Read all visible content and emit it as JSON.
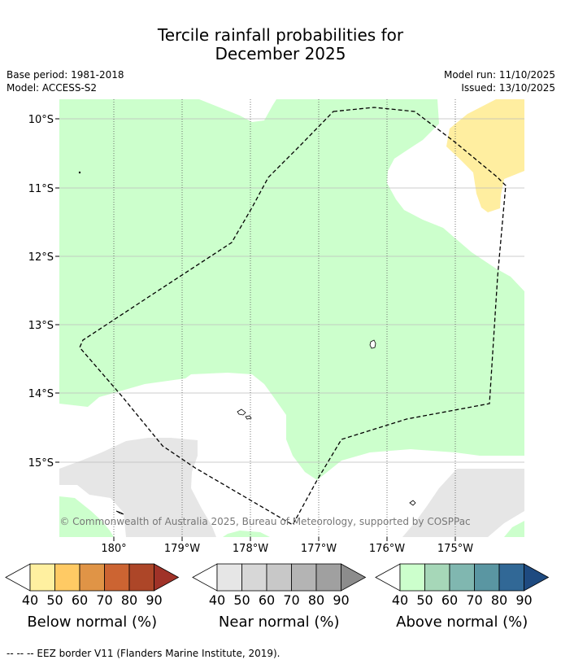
{
  "title": {
    "line1": "Tercile rainfall probabilities for",
    "line2": "December 2025"
  },
  "meta": {
    "base_period": "Base period: 1981-2018",
    "model": "Model: ACCESS-S2",
    "model_run": "Model run: 11/10/2025",
    "issued": "Issued: 13/10/2025"
  },
  "map": {
    "lat_labels": [
      "10°S",
      "11°S",
      "12°S",
      "13°S",
      "14°S",
      "15°S"
    ],
    "lon_labels": [
      "180°",
      "179°W",
      "178°W",
      "177°W",
      "176°W",
      "175°W"
    ],
    "copyright": "© Commonwealth of Australia 2025, Bureau of Meteorology, supported by COSPPac",
    "colors": {
      "above_normal_fill": "#ccffcc",
      "near_normal_fill": "#e6e6e6",
      "below_normal_fill": "#ffeea0",
      "eez_line": "#000000",
      "grid": "#bbbbbb"
    }
  },
  "colorbars": [
    {
      "label": "Below normal (%)",
      "values": [
        "40",
        "50",
        "60",
        "70",
        "80",
        "90"
      ],
      "colors": [
        "#fff0a0",
        "#ffca64",
        "#e09446",
        "#cc6432",
        "#ad4628",
        "#a03228"
      ]
    },
    {
      "label": "Near normal (%)",
      "values": [
        "40",
        "50",
        "60",
        "70",
        "80",
        "90"
      ],
      "colors": [
        "#e6e6e6",
        "#d7d7d7",
        "#c8c8c8",
        "#b4b4b4",
        "#a0a0a0",
        "#8c8c8c"
      ]
    },
    {
      "label": "Above normal (%)",
      "values": [
        "40",
        "50",
        "60",
        "70",
        "80",
        "90"
      ],
      "colors": [
        "#ccffcc",
        "#a6d7b8",
        "#80b7b0",
        "#5a96a2",
        "#316896",
        "#1e4a80"
      ]
    }
  ],
  "footnote": "--  --  -- EEZ border V11 (Flanders Marine Institute, 2019)."
}
